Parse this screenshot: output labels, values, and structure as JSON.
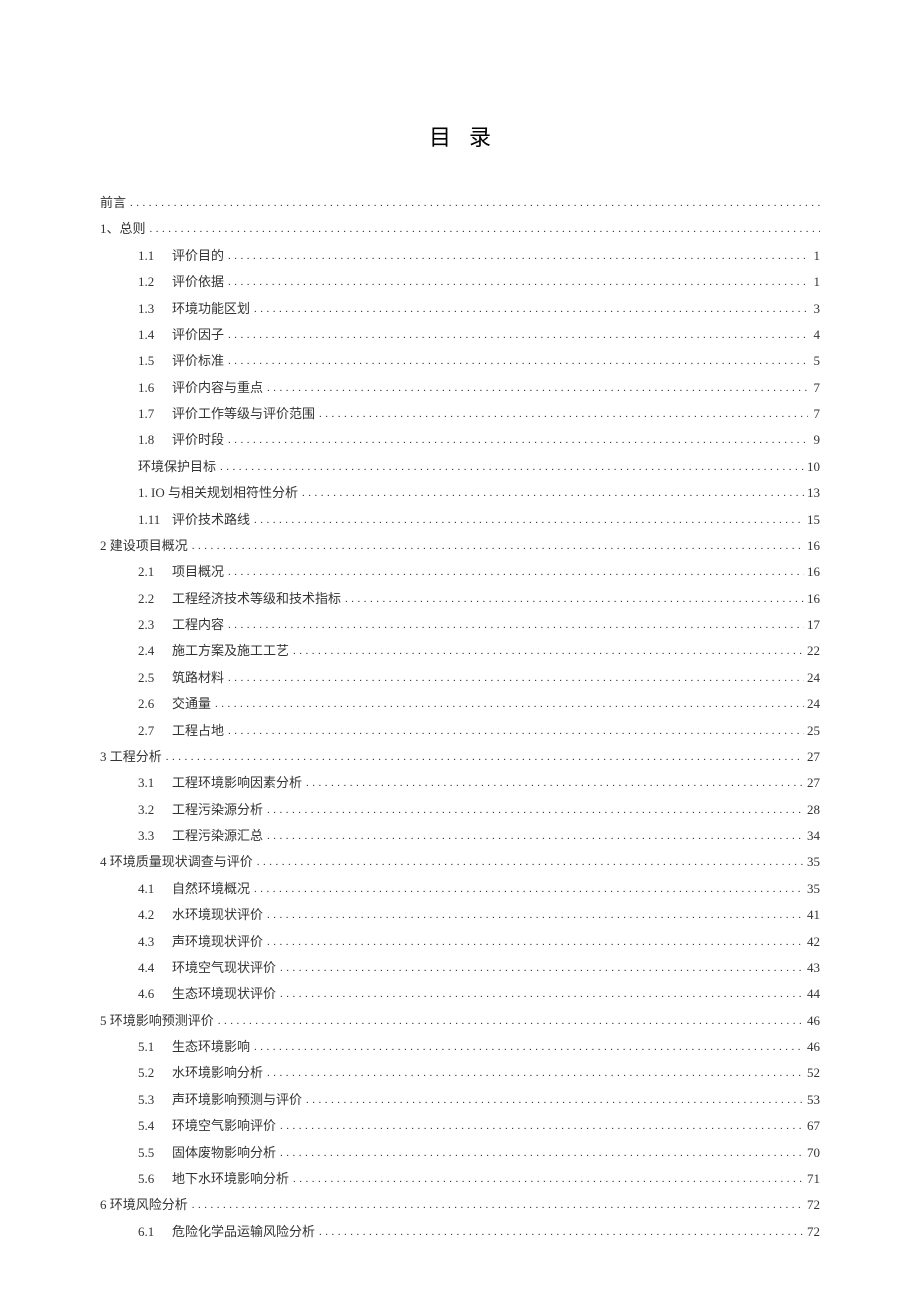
{
  "doc": {
    "title": "目录",
    "background_color": "#ffffff",
    "text_color": "#333333",
    "title_fontsize": 22,
    "entry_fontsize": 13,
    "font_family": "SimSun",
    "toc": [
      {
        "level": 0,
        "num": "",
        "text": "前言",
        "page": ""
      },
      {
        "level": 0,
        "num": "",
        "text": "1、总则",
        "page": ""
      },
      {
        "level": 1,
        "num": "1.1",
        "text": "评价目的",
        "page": "1"
      },
      {
        "level": 1,
        "num": "1.2",
        "text": "评价依据",
        "page": "1"
      },
      {
        "level": 1,
        "num": "1.3",
        "text": "环境功能区划",
        "page": "3"
      },
      {
        "level": 1,
        "num": "1.4",
        "text": "评价因子",
        "page": "4"
      },
      {
        "level": 1,
        "num": "1.5",
        "text": "评价标准",
        "page": "5"
      },
      {
        "level": 1,
        "num": "1.6",
        "text": "评价内容与重点",
        "page": "7"
      },
      {
        "level": 1,
        "num": "1.7",
        "text": "评价工作等级与评价范围",
        "page": "7"
      },
      {
        "level": 1,
        "num": "1.8",
        "text": "评价时段",
        "page": "9"
      },
      {
        "level": 1,
        "num": "",
        "text": "环境保护目标",
        "page": "10"
      },
      {
        "level": 1,
        "num": "",
        "text": "1. IO 与相关规划相符性分析",
        "page": "13"
      },
      {
        "level": 1,
        "num": "1.11",
        "text": " 评价技术路线",
        "page": "15"
      },
      {
        "level": 0,
        "num": "",
        "text": "2 建设项目概况",
        "page": "16"
      },
      {
        "level": 1,
        "num": "2.1",
        "text": "项目概况",
        "page": "16"
      },
      {
        "level": 1,
        "num": "2.2",
        "text": "工程经济技术等级和技术指标",
        "page": "16"
      },
      {
        "level": 1,
        "num": "2.3",
        "text": "工程内容",
        "page": "17"
      },
      {
        "level": 1,
        "num": "2.4",
        "text": "施工方案及施工工艺",
        "page": "22"
      },
      {
        "level": 1,
        "num": "2.5",
        "text": "筑路材料",
        "page": "24"
      },
      {
        "level": 1,
        "num": "2.6",
        "text": "交通量",
        "page": "24"
      },
      {
        "level": 1,
        "num": "2.7",
        "text": "工程占地",
        "page": "25"
      },
      {
        "level": 0,
        "num": "",
        "text": "3 工程分析",
        "page": "27"
      },
      {
        "level": 1,
        "num": "3.1",
        "text": "工程环境影响因素分析",
        "page": "27"
      },
      {
        "level": 1,
        "num": "3.2",
        "text": "工程污染源分析",
        "page": "28"
      },
      {
        "level": 1,
        "num": "3.3",
        "text": "工程污染源汇总",
        "page": "34"
      },
      {
        "level": 0,
        "num": "",
        "text": "4 环境质量现状调查与评价",
        "page": "35"
      },
      {
        "level": 1,
        "num": "4.1",
        "text": "自然环境概况",
        "page": "35"
      },
      {
        "level": 1,
        "num": "4.2",
        "text": "水环境现状评价",
        "page": "41"
      },
      {
        "level": 1,
        "num": "4.3",
        "text": "声环境现状评价",
        "page": "42"
      },
      {
        "level": 1,
        "num": "4.4",
        "text": "环境空气现状评价",
        "page": "43"
      },
      {
        "level": 1,
        "num": "4.6",
        "text": "生态环境现状评价",
        "page": "44"
      },
      {
        "level": 0,
        "num": "",
        "text": "5 环境影响预测评价",
        "page": "46"
      },
      {
        "level": 1,
        "num": "5.1",
        "text": "生态环境影响",
        "page": "46"
      },
      {
        "level": 1,
        "num": "5.2",
        "text": "水环境影响分析",
        "page": "52"
      },
      {
        "level": 1,
        "num": "5.3",
        "text": "声环境影响预测与评价",
        "page": "53"
      },
      {
        "level": 1,
        "num": "5.4",
        "text": "环境空气影响评价",
        "page": "67"
      },
      {
        "level": 1,
        "num": "5.5",
        "text": "固体废物影响分析",
        "page": "70"
      },
      {
        "level": 1,
        "num": "5.6",
        "text": "地下水环境影响分析",
        "page": "71"
      },
      {
        "level": 0,
        "num": "",
        "text": "6 环境风险分析",
        "page": "72"
      },
      {
        "level": 1,
        "num": "6.1",
        "text": "危险化学品运输风险分析",
        "page": "72"
      }
    ]
  }
}
